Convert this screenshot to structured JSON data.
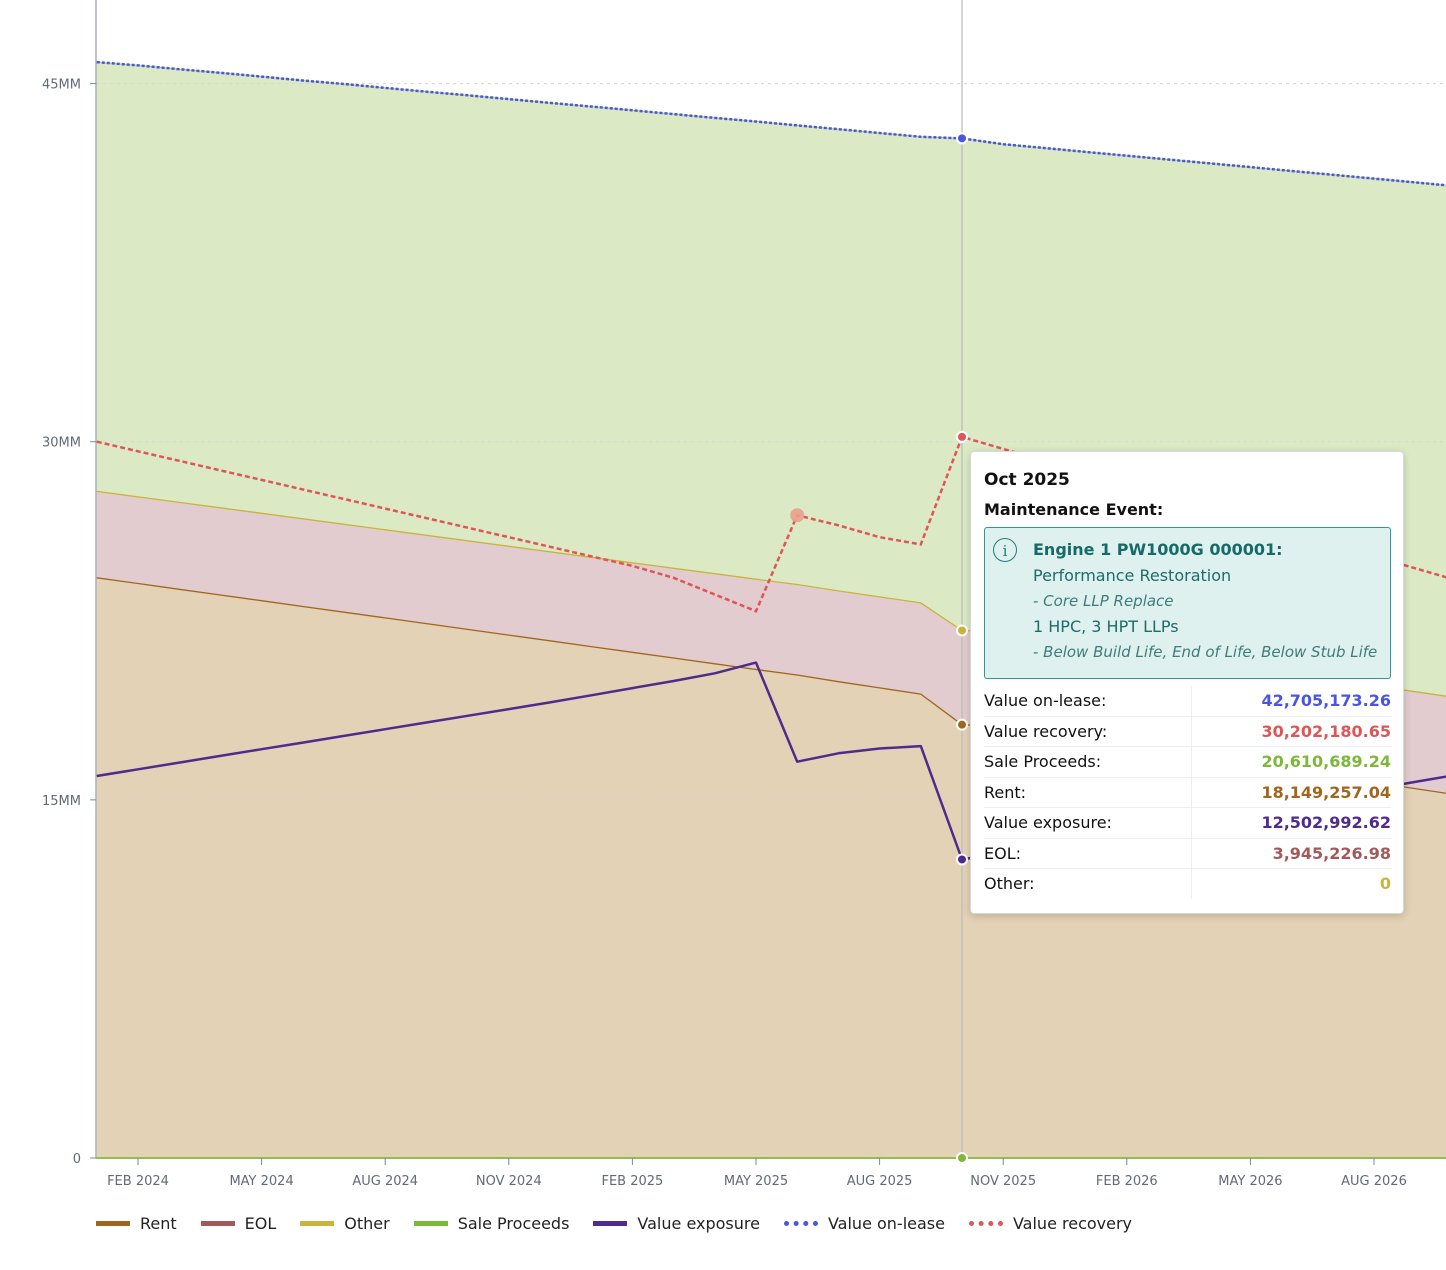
{
  "chart_data": {
    "type": "area",
    "x": [
      "2024-01",
      "2024-02",
      "2024-03",
      "2024-04",
      "2024-05",
      "2024-06",
      "2024-07",
      "2024-08",
      "2024-09",
      "2024-10",
      "2024-11",
      "2024-12",
      "2025-01",
      "2025-02",
      "2025-03",
      "2025-04",
      "2025-05",
      "2025-06",
      "2025-07",
      "2025-08",
      "2025-09",
      "2025-10",
      "2025-11",
      "2025-12",
      "2026-01",
      "2026-02",
      "2026-03",
      "2026-04",
      "2026-05",
      "2026-06",
      "2026-07",
      "2026-08",
      "2026-09",
      "2026-10"
    ],
    "x_ticks": [
      "FEB 2024",
      "MAY 2024",
      "AUG 2024",
      "NOV 2024",
      "FEB 2025",
      "MAY 2025",
      "AUG 2025",
      "NOV 2025",
      "FEB 2026",
      "MAY 2026",
      "AUG 2026"
    ],
    "y_ticks": [
      "0",
      "15MM",
      "30MM",
      "45MM"
    ],
    "ylim": [
      0,
      48500000
    ],
    "series": [
      {
        "name": "Rent",
        "type": "stacked-area",
        "color": "#a0661e",
        "fill": "#e3d2b5",
        "values": [
          24300000,
          24060000,
          23820000,
          23580000,
          23340000,
          23100000,
          22860000,
          22620000,
          22380000,
          22140000,
          21900000,
          21660000,
          21420000,
          21180000,
          20940000,
          20700000,
          20460000,
          20230000,
          19950000,
          19690000,
          19430000,
          18149257,
          18070000,
          17810000,
          17550000,
          17290000,
          17030000,
          16770000,
          16510000,
          16250000,
          15990000,
          15730000,
          15470000,
          15210000
        ]
      },
      {
        "name": "EOL",
        "type": "stacked-area",
        "color": "#a05a5a",
        "fill": "#e2cccf",
        "values": [
          3620000,
          3630000,
          3640000,
          3650000,
          3660000,
          3670000,
          3680000,
          3690000,
          3700000,
          3710000,
          3720000,
          3730000,
          3740000,
          3750000,
          3760000,
          3770000,
          3780000,
          3790000,
          3800000,
          3810000,
          3820000,
          3945227,
          3960000,
          3970000,
          3980000,
          3990000,
          4000000,
          4010000,
          4020000,
          4030000,
          4040000,
          4050000,
          4060000,
          4070000
        ]
      },
      {
        "name": "Other",
        "type": "stacked-area",
        "color": "#c9b53c",
        "fill": "#e2cccf",
        "values": [
          0,
          0,
          0,
          0,
          0,
          0,
          0,
          0,
          0,
          0,
          0,
          0,
          0,
          0,
          0,
          0,
          0,
          0,
          0,
          0,
          0,
          0,
          0,
          0,
          0,
          0,
          0,
          0,
          0,
          0,
          0,
          0,
          0,
          0
        ]
      },
      {
        "name": "Sale Proceeds",
        "type": "stacked-area",
        "color": "#7db83a",
        "fill": "#dbeac5",
        "values": [
          45900000,
          45760000,
          45600000,
          45450000,
          45290000,
          45130000,
          44980000,
          44820000,
          44660000,
          44510000,
          44350000,
          44190000,
          44040000,
          43880000,
          43720000,
          43560000,
          43410000,
          43250000,
          43090000,
          42930000,
          42770000,
          42705173,
          42460000,
          42300000,
          42140000,
          41980000,
          41820000,
          41660000,
          41500000,
          41340000,
          41180000,
          41020000,
          40860000,
          40700000
        ]
      },
      {
        "name": "Value exposure",
        "type": "line",
        "color": "#4e2b8c",
        "values": [
          16000000,
          16280000,
          16560000,
          16840000,
          17120000,
          17400000,
          17680000,
          17960000,
          18240000,
          18520000,
          18800000,
          19080000,
          19380000,
          19680000,
          19980000,
          20300000,
          20750000,
          16600000,
          16950000,
          17150000,
          17250000,
          12502993,
          12800000,
          13100000,
          13400000,
          13700000,
          14000000,
          14300000,
          14600000,
          14900000,
          15200000,
          15450000,
          15750000,
          16050000
        ]
      },
      {
        "name": "Value on-lease",
        "type": "dotted-line",
        "color": "#4a55e0",
        "values": [
          45900000,
          45760000,
          45600000,
          45450000,
          45290000,
          45130000,
          44980000,
          44820000,
          44660000,
          44510000,
          44350000,
          44190000,
          44040000,
          43880000,
          43720000,
          43560000,
          43410000,
          43250000,
          43090000,
          42930000,
          42770000,
          42705173,
          42460000,
          42300000,
          42140000,
          41980000,
          41820000,
          41660000,
          41500000,
          41340000,
          41180000,
          41020000,
          40860000,
          40700000
        ]
      },
      {
        "name": "Value recovery",
        "type": "dotted-line",
        "color": "#e05555",
        "values": [
          30000000,
          29600000,
          29200000,
          28800000,
          28400000,
          28000000,
          27600000,
          27200000,
          26800000,
          26400000,
          26000000,
          25600000,
          25200000,
          24800000,
          24300000,
          23600000,
          22900000,
          26920000,
          26500000,
          26000000,
          25700000,
          30202181,
          29700000,
          29200000,
          28700000,
          28200000,
          27700000,
          27200000,
          26700000,
          26200000,
          25700000,
          25200000,
          24700000,
          24200000
        ]
      }
    ],
    "highlight_point": {
      "x": "2025-06",
      "series": "Value recovery",
      "color": "#e8a08c"
    },
    "legend_position": "bottom-left",
    "grid": "horizontal dotted"
  },
  "legend": [
    {
      "label": "Rent",
      "color": "#a0661e",
      "style": "solid"
    },
    {
      "label": "EOL",
      "color": "#a05a5a",
      "style": "solid"
    },
    {
      "label": "Other",
      "color": "#c9b53c",
      "style": "solid"
    },
    {
      "label": "Sale Proceeds",
      "color": "#7db83a",
      "style": "solid"
    },
    {
      "label": "Value exposure",
      "color": "#4e2b8c",
      "style": "solid"
    },
    {
      "label": "Value on-lease",
      "color": "#4a55e0",
      "style": "dotted"
    },
    {
      "label": "Value recovery",
      "color": "#e05555",
      "style": "dotted"
    }
  ],
  "tooltip": {
    "month": "Oct 2025",
    "subtitle": "Maintenance Event:",
    "event": {
      "title": "Engine 1 PW1000G 000001:",
      "line1": "Performance Restoration",
      "note1": "- Core LLP Replace",
      "line2": "1 HPC, 3 HPT LLPs",
      "note2": "- Below Build Life, End of Life, Below Stub Life"
    },
    "rows": [
      {
        "label": "Value on-lease:",
        "value": "42,705,173.26",
        "color": "#4a55e0"
      },
      {
        "label": "Value recovery:",
        "value": "30,202,180.65",
        "color": "#e05555"
      },
      {
        "label": "Sale Proceeds:",
        "value": "20,610,689.24",
        "color": "#7db83a"
      },
      {
        "label": "Rent:",
        "value": "18,149,257.04",
        "color": "#a0661e"
      },
      {
        "label": "Value exposure:",
        "value": "12,502,992.62",
        "color": "#4e2b8c"
      },
      {
        "label": "EOL:",
        "value": "3,945,226.98",
        "color": "#a05a5a"
      },
      {
        "label": "Other:",
        "value": "0",
        "color": "#c9b53c"
      }
    ]
  }
}
